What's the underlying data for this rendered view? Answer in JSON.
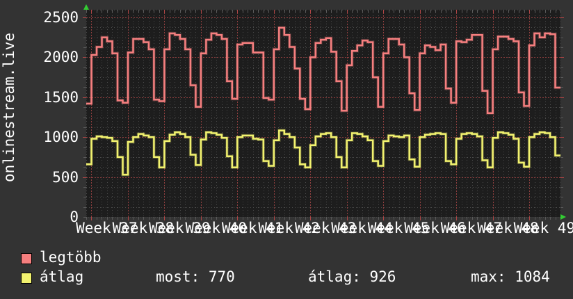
{
  "title": "onlinestream.live",
  "legend": {
    "max_label": "legtöbb",
    "avg_label": "átlag"
  },
  "stats": {
    "now_text": "most: 770",
    "avg_text": "átlag: 926",
    "max_text": "max: 1084"
  },
  "colors": {
    "background": "#333333",
    "plot_background": "#1d1d1d",
    "grid_minor": "#4b4b4b",
    "grid_major": "#8f3f3f",
    "tick_minor": "#5a5a5a",
    "tick_major": "#b04545",
    "series_max": "#f67f7f",
    "series_avg": "#f2f26f",
    "text": "#ffffff",
    "arrow": "#33cc33",
    "swatch_border": "#000000"
  },
  "chart_data": {
    "type": "line",
    "step": true,
    "title": "onlinestream.live",
    "xlabel": "",
    "ylabel": "",
    "ylim": [
      0,
      2600
    ],
    "grid": true,
    "legend_position": "bottom-left",
    "y_ticks": [
      {
        "label": "2500",
        "value": 2500
      },
      {
        "label": "2000",
        "value": 2000
      },
      {
        "label": "1500",
        "value": 1500
      },
      {
        "label": "1000",
        "value": 1000
      },
      {
        "label": "500",
        "value": 500
      },
      {
        "label": "0",
        "value": 0
      }
    ],
    "x_labels": [
      "Week 37",
      "Week 38",
      "Week 39",
      "Week 40",
      "Week 41",
      "Week 42",
      "Week 43",
      "Week 44",
      "Week 45",
      "Week 46",
      "Week 47",
      "Week 48",
      "Week 49"
    ],
    "x_unit": "day",
    "days_per_week": 7,
    "series": [
      {
        "name": "legtöbb",
        "color": "#f67f7f",
        "values": [
          1420,
          2030,
          2130,
          2250,
          2200,
          2050,
          1460,
          1430,
          2060,
          2230,
          2230,
          2190,
          2100,
          1470,
          1450,
          2100,
          2300,
          2280,
          2230,
          2100,
          1650,
          1380,
          2050,
          2220,
          2300,
          2280,
          2230,
          1700,
          1480,
          2160,
          2180,
          2180,
          2060,
          2060,
          1490,
          1470,
          2100,
          2370,
          2280,
          2130,
          1860,
          1480,
          1350,
          2000,
          2180,
          2220,
          2240,
          2070,
          1700,
          1330,
          1900,
          2080,
          2150,
          2210,
          2190,
          1750,
          1380,
          2050,
          2230,
          2230,
          2160,
          2000,
          1550,
          1340,
          2050,
          2150,
          2130,
          2090,
          2160,
          1610,
          1430,
          2200,
          2190,
          2220,
          2280,
          2280,
          1580,
          1300,
          2100,
          2260,
          2260,
          2230,
          2200,
          1560,
          1390,
          2150,
          2300,
          2250,
          2300,
          2290,
          1620
        ]
      },
      {
        "name": "átlag",
        "color": "#f2f26f",
        "values": [
          660,
          980,
          1010,
          1000,
          990,
          950,
          750,
          530,
          940,
          1000,
          1040,
          1020,
          1000,
          750,
          620,
          950,
          1030,
          1060,
          1040,
          1000,
          780,
          650,
          970,
          1060,
          1050,
          1030,
          990,
          760,
          620,
          1000,
          1020,
          1020,
          980,
          970,
          700,
          640,
          960,
          1084,
          1040,
          1000,
          870,
          660,
          620,
          900,
          1010,
          1040,
          1050,
          1000,
          750,
          620,
          960,
          1050,
          1040,
          1010,
          960,
          700,
          640,
          950,
          1020,
          1010,
          1000,
          1020,
          720,
          630,
          1000,
          1030,
          1040,
          1050,
          1040,
          700,
          660,
          980,
          1040,
          1050,
          1040,
          1010,
          710,
          620,
          990,
          1060,
          1050,
          1030,
          980,
          680,
          630,
          1000,
          1040,
          1060,
          1050,
          1000,
          770
        ]
      }
    ]
  }
}
